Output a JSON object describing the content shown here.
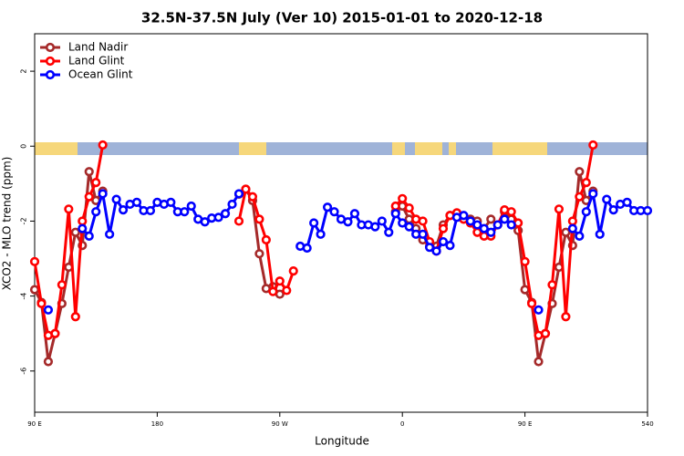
{
  "chart_data": {
    "type": "line",
    "title": "32.5N-37.5N July (Ver 10)   2015-01-01 to 2020-12-18",
    "x_label": "Longitude",
    "y_label": "XCO2 - MLO trend (ppm)",
    "x": [
      90,
      95,
      100,
      105,
      110,
      115,
      120,
      125,
      130,
      135,
      140,
      145,
      150,
      155,
      160,
      165,
      170,
      175,
      180,
      185,
      190,
      195,
      200,
      205,
      210,
      215,
      220,
      225,
      230,
      235,
      240,
      245,
      250,
      255,
      260,
      265,
      270,
      275,
      280,
      285,
      290,
      295,
      300,
      305,
      310,
      315,
      320,
      325,
      330,
      335,
      340,
      345,
      350,
      355,
      360,
      365,
      370,
      375,
      380,
      385,
      390,
      395,
      400,
      405,
      410,
      415,
      420,
      425,
      430,
      435,
      440,
      445,
      450,
      455,
      460,
      465,
      470,
      475,
      480,
      485,
      490,
      495,
      500,
      505,
      510,
      515,
      520,
      525,
      530,
      535,
      540
    ],
    "series": [
      {
        "name": "Land Nadir",
        "color": "#a52a2a",
        "values": [
          -3.83,
          -4.17,
          -5.75,
          -5.0,
          -4.2,
          -3.23,
          -2.3,
          -2.65,
          -0.68,
          -1.45,
          -1.2,
          null,
          null,
          null,
          null,
          null,
          null,
          null,
          null,
          null,
          null,
          null,
          null,
          null,
          null,
          null,
          null,
          null,
          null,
          null,
          -1.28,
          -1.15,
          -1.45,
          -2.87,
          -3.8,
          -3.75,
          -3.95,
          null,
          null,
          null,
          null,
          null,
          null,
          null,
          null,
          null,
          null,
          null,
          null,
          null,
          null,
          null,
          null,
          -1.75,
          -1.6,
          -1.95,
          -2.2,
          -2.5,
          -2.67,
          -2.67,
          -2.1,
          -1.85,
          -1.85,
          -1.9,
          -1.95,
          -2.0,
          -2.2,
          -1.95,
          -2.1,
          -1.75,
          -1.95,
          -2.25,
          -3.83,
          -4.17,
          -5.75,
          -5.0,
          -4.2,
          -3.23,
          -2.3,
          -2.65,
          -0.68,
          -1.45,
          -1.2,
          null,
          null,
          null,
          null,
          null,
          null,
          null,
          null
        ]
      },
      {
        "name": "Land Glint",
        "color": "#ff0000",
        "values": [
          -3.08,
          -4.2,
          -5.05,
          -5.0,
          -3.7,
          -1.68,
          -4.55,
          -2.0,
          -1.35,
          -0.97,
          0.03,
          null,
          null,
          null,
          null,
          null,
          null,
          null,
          null,
          null,
          null,
          null,
          null,
          null,
          null,
          null,
          null,
          null,
          null,
          null,
          -2.0,
          -1.15,
          -1.35,
          -1.95,
          -2.5,
          -3.88,
          -3.6,
          -3.85,
          -3.33,
          null,
          null,
          null,
          null,
          null,
          null,
          null,
          null,
          null,
          null,
          null,
          null,
          null,
          null,
          -1.6,
          -1.4,
          -1.65,
          -1.95,
          -2.0,
          -2.55,
          -2.8,
          -2.2,
          -1.85,
          -1.78,
          -1.95,
          -2.05,
          -2.3,
          -2.4,
          -2.4,
          -2.1,
          -1.7,
          -1.75,
          -2.05,
          -3.08,
          -4.2,
          -5.05,
          -5.0,
          -3.7,
          -1.68,
          -4.55,
          -2.0,
          -1.35,
          -0.97,
          0.03,
          null,
          null,
          null,
          null,
          null,
          null,
          null,
          null
        ]
      },
      {
        "name": "Ocean Glint",
        "color": "#0000ff",
        "values": [
          null,
          null,
          -4.37,
          null,
          null,
          null,
          null,
          -2.2,
          -2.4,
          -1.75,
          -1.27,
          -2.35,
          -1.42,
          -1.7,
          -1.55,
          -1.5,
          -1.72,
          -1.72,
          -1.5,
          -1.55,
          -1.5,
          -1.75,
          -1.75,
          -1.6,
          -1.95,
          -2.02,
          -1.92,
          -1.9,
          -1.8,
          -1.55,
          -1.27,
          null,
          null,
          null,
          null,
          null,
          null,
          null,
          null,
          -2.67,
          -2.72,
          -2.05,
          -2.35,
          -1.63,
          -1.75,
          -1.95,
          -2.02,
          -1.8,
          -2.1,
          -2.1,
          -2.15,
          -2.0,
          -2.3,
          -1.8,
          -2.05,
          -2.15,
          -2.35,
          -2.35,
          -2.7,
          -2.8,
          -2.55,
          -2.65,
          -1.9,
          -1.85,
          -2.0,
          -2.1,
          -2.2,
          -2.3,
          -2.1,
          -1.95,
          -2.1,
          null,
          null,
          null,
          -4.37,
          null,
          null,
          null,
          null,
          -2.2,
          -2.4,
          -1.75,
          -1.27,
          -2.35,
          -1.42,
          -1.7,
          -1.55,
          -1.5,
          -1.72,
          -1.72,
          -1.72
        ]
      }
    ],
    "xlim": [
      90,
      540
    ],
    "xticks": [
      {
        "value": 90,
        "label": "90 E"
      },
      180,
      {
        "value": 270,
        "label": "90 W"
      },
      {
        "value": 360,
        "label": "0"
      },
      {
        "value": 450,
        "label": "90 E"
      },
      540
    ],
    "ylim": [
      -7.1,
      3
    ],
    "yticks": [
      -6,
      -4,
      -2,
      0,
      2
    ],
    "legend": "top-left"
  }
}
